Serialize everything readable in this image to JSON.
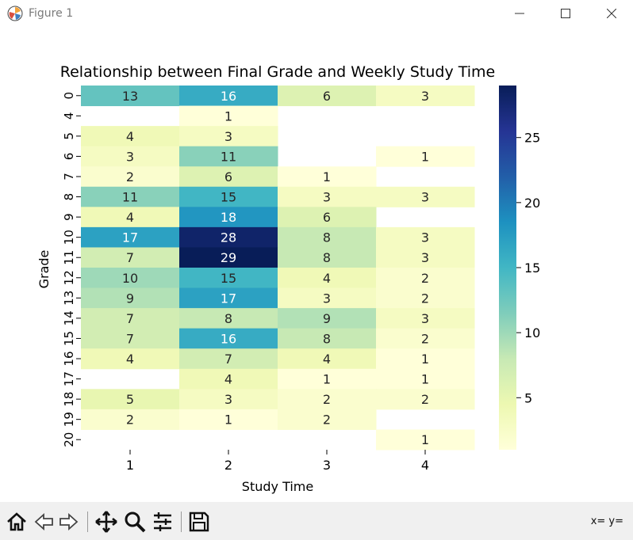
{
  "window": {
    "title": "Figure 1"
  },
  "toolbar": {
    "buttons": [
      "home-icon",
      "back-icon",
      "forward-icon",
      "pan-icon",
      "zoom-icon",
      "configure-icon",
      "save-icon"
    ],
    "coords": "x= y="
  },
  "chart_data": {
    "type": "heatmap",
    "title": "Relationship between Final Grade and Weekly Study Time",
    "xlabel": "Study Time",
    "ylabel": "Grade",
    "x_categories": [
      "1",
      "2",
      "3",
      "4"
    ],
    "y_categories": [
      "0",
      "4",
      "5",
      "6",
      "7",
      "8",
      "9",
      "10",
      "11",
      "12",
      "13",
      "14",
      "15",
      "16",
      "17",
      "18",
      "19",
      "20"
    ],
    "values": [
      [
        13,
        16,
        6,
        3
      ],
      [
        null,
        1,
        null,
        null
      ],
      [
        4,
        3,
        null,
        null
      ],
      [
        3,
        11,
        null,
        1
      ],
      [
        2,
        6,
        1,
        null
      ],
      [
        11,
        15,
        3,
        3
      ],
      [
        4,
        18,
        6,
        null
      ],
      [
        17,
        28,
        8,
        3
      ],
      [
        7,
        29,
        8,
        3
      ],
      [
        10,
        15,
        4,
        2
      ],
      [
        9,
        17,
        3,
        2
      ],
      [
        7,
        8,
        9,
        3
      ],
      [
        7,
        16,
        8,
        2
      ],
      [
        4,
        7,
        4,
        1
      ],
      [
        null,
        4,
        1,
        1
      ],
      [
        5,
        3,
        2,
        2
      ],
      [
        2,
        1,
        2,
        null
      ],
      [
        null,
        null,
        null,
        1
      ]
    ],
    "colormap": "YlGnBu",
    "vmin": 1,
    "vmax": 29,
    "colorbar_ticks": [
      5,
      10,
      15,
      20,
      25
    ],
    "annotated": true,
    "grid": false
  }
}
